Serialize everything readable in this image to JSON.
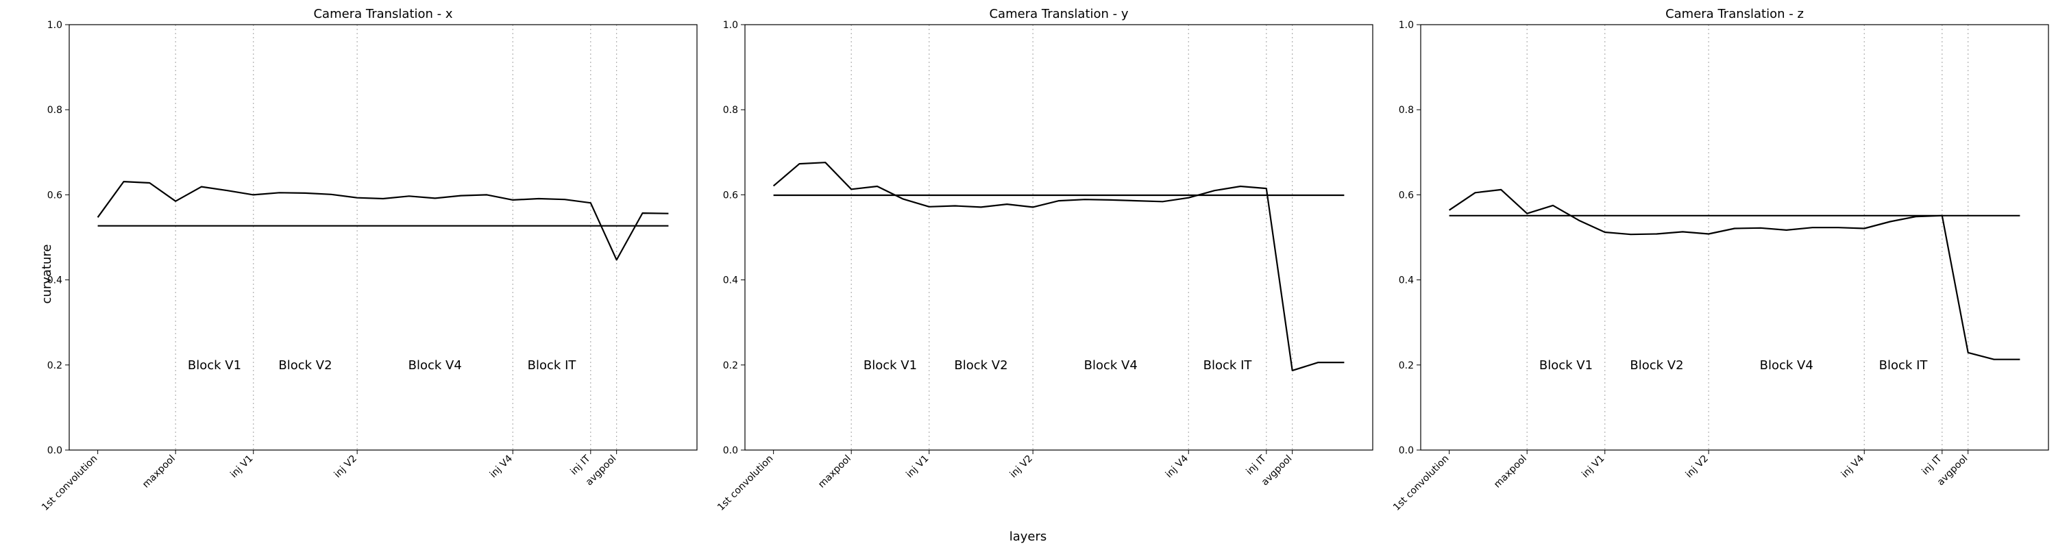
{
  "figure": {
    "xlabel": "layers",
    "ylabel": "curvature"
  },
  "chart_data": [
    {
      "type": "line",
      "title": "Camera Translation - x",
      "xlabel": "layers",
      "ylabel": "curvature",
      "ylim": [
        0.0,
        1.0
      ],
      "yticks": [
        "0.0",
        "0.2",
        "0.4",
        "0.6",
        "0.8",
        "1.0"
      ],
      "xticks": [
        {
          "index": 0,
          "label": "1st convolution"
        },
        {
          "index": 3,
          "label": "maxpool"
        },
        {
          "index": 6,
          "label": "inj V1"
        },
        {
          "index": 10,
          "label": "inj V2"
        },
        {
          "index": 16,
          "label": "inj V4"
        },
        {
          "index": 19,
          "label": "inj IT"
        },
        {
          "index": 20,
          "label": "avgpool"
        }
      ],
      "vlines": [
        3,
        6,
        10,
        16,
        19,
        20
      ],
      "block_labels": [
        {
          "x": 4.5,
          "y": 0.2,
          "text": "Block V1"
        },
        {
          "x": 8,
          "y": 0.2,
          "text": "Block V2"
        },
        {
          "x": 13,
          "y": 0.2,
          "text": "Block V4"
        },
        {
          "x": 17.5,
          "y": 0.2,
          "text": "Block IT"
        }
      ],
      "series": [
        {
          "x": [
            0,
            1,
            2,
            3,
            4,
            5,
            6,
            7,
            8,
            9,
            10,
            11,
            12,
            13,
            14,
            15,
            16,
            17,
            18,
            19,
            20,
            21,
            22
          ],
          "values": [
            0.547,
            0.631,
            0.628,
            0.585,
            0.619,
            0.61,
            0.6,
            0.605,
            0.604,
            0.601,
            0.593,
            0.591,
            0.597,
            0.592,
            0.598,
            0.6,
            0.588,
            0.591,
            0.589,
            0.581,
            0.447,
            0.557,
            0.556
          ]
        },
        {
          "x": [
            0,
            22
          ],
          "values": [
            0.527,
            0.527
          ]
        }
      ],
      "grid": false
    },
    {
      "type": "line",
      "title": "Camera Translation - y",
      "xlabel": "layers",
      "ylabel": "curvature",
      "ylim": [
        0.0,
        1.0
      ],
      "yticks": [
        "0.0",
        "0.2",
        "0.4",
        "0.6",
        "0.8",
        "1.0"
      ],
      "xticks": [
        {
          "index": 0,
          "label": "1st convolution"
        },
        {
          "index": 3,
          "label": "maxpool"
        },
        {
          "index": 6,
          "label": "inj V1"
        },
        {
          "index": 10,
          "label": "inj V2"
        },
        {
          "index": 16,
          "label": "inj V4"
        },
        {
          "index": 19,
          "label": "inj IT"
        },
        {
          "index": 20,
          "label": "avgpool"
        }
      ],
      "vlines": [
        3,
        6,
        10,
        16,
        19,
        20
      ],
      "block_labels": [
        {
          "x": 4.5,
          "y": 0.2,
          "text": "Block V1"
        },
        {
          "x": 8,
          "y": 0.2,
          "text": "Block V2"
        },
        {
          "x": 13,
          "y": 0.2,
          "text": "Block V4"
        },
        {
          "x": 17.5,
          "y": 0.2,
          "text": "Block IT"
        }
      ],
      "series": [
        {
          "x": [
            0,
            1,
            2,
            3,
            4,
            5,
            6,
            7,
            8,
            9,
            10,
            11,
            12,
            13,
            14,
            15,
            16,
            17,
            18,
            19,
            20,
            21,
            22
          ],
          "values": [
            0.621,
            0.673,
            0.676,
            0.613,
            0.62,
            0.59,
            0.572,
            0.574,
            0.571,
            0.578,
            0.571,
            0.586,
            0.589,
            0.588,
            0.586,
            0.584,
            0.593,
            0.61,
            0.62,
            0.615,
            0.187,
            0.206,
            0.206
          ]
        },
        {
          "x": [
            0,
            22
          ],
          "values": [
            0.599,
            0.599
          ]
        }
      ],
      "grid": false
    },
    {
      "type": "line",
      "title": "Camera Translation - z",
      "xlabel": "layers",
      "ylabel": "curvature",
      "ylim": [
        0.0,
        1.0
      ],
      "yticks": [
        "0.0",
        "0.2",
        "0.4",
        "0.6",
        "0.8",
        "1.0"
      ],
      "xticks": [
        {
          "index": 0,
          "label": "1st convolution"
        },
        {
          "index": 3,
          "label": "maxpool"
        },
        {
          "index": 6,
          "label": "inj V1"
        },
        {
          "index": 10,
          "label": "inj V2"
        },
        {
          "index": 16,
          "label": "inj V4"
        },
        {
          "index": 19,
          "label": "inj IT"
        },
        {
          "index": 20,
          "label": "avgpool"
        }
      ],
      "vlines": [
        3,
        6,
        10,
        16,
        19,
        20
      ],
      "block_labels": [
        {
          "x": 4.5,
          "y": 0.2,
          "text": "Block V1"
        },
        {
          "x": 8,
          "y": 0.2,
          "text": "Block V2"
        },
        {
          "x": 13,
          "y": 0.2,
          "text": "Block V4"
        },
        {
          "x": 17.5,
          "y": 0.2,
          "text": "Block IT"
        }
      ],
      "series": [
        {
          "x": [
            0,
            1,
            2,
            3,
            4,
            5,
            6,
            7,
            8,
            9,
            10,
            11,
            12,
            13,
            14,
            15,
            16,
            17,
            18,
            19,
            20,
            21,
            22
          ],
          "values": [
            0.564,
            0.605,
            0.612,
            0.556,
            0.575,
            0.54,
            0.512,
            0.507,
            0.508,
            0.513,
            0.508,
            0.521,
            0.522,
            0.517,
            0.523,
            0.523,
            0.521,
            0.537,
            0.549,
            0.551,
            0.229,
            0.213,
            0.213
          ]
        },
        {
          "x": [
            0,
            22
          ],
          "values": [
            0.551,
            0.551
          ]
        }
      ],
      "grid": false
    }
  ]
}
